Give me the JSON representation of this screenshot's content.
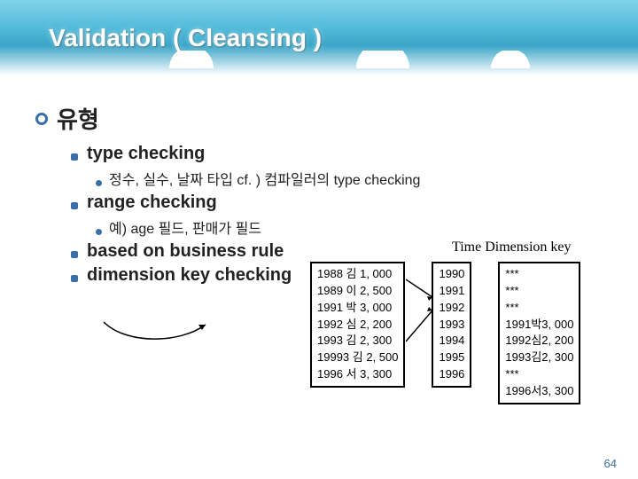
{
  "title": "Validation ( Cleansing )",
  "main_bullet": "유형",
  "items": [
    {
      "label": "type checking",
      "sub": "정수, 실수, 날짜 타입   cf. ) 컴파일러의 type checking"
    },
    {
      "label": "range checking",
      "sub": "예) age 필드, 판매가 필드"
    },
    {
      "label": "based on business rule",
      "sub": null
    },
    {
      "label": "dimension key checking",
      "sub": null
    }
  ],
  "dim_label": "Time Dimension key",
  "table_left": {
    "rows": [
      "1988 김 1, 000",
      "1989 이 2, 500",
      "1991 박 3, 000",
      "1992 심 2, 200",
      "1993 김 2, 300",
      "19993 김 2, 500",
      "1996 서 3, 300"
    ]
  },
  "table_mid": {
    "rows": [
      "1990",
      "1991",
      "1992",
      "1993",
      "1994",
      "1995",
      "1996"
    ]
  },
  "table_right": {
    "rows": [
      [
        "*",
        "*",
        "*"
      ],
      [
        "*",
        "*",
        "*"
      ],
      [
        "*",
        "*",
        "*"
      ],
      [
        "1991",
        "박",
        "3, 000"
      ],
      [
        "1992",
        "심",
        "2, 200"
      ],
      [
        "1993",
        "김",
        "2, 300"
      ],
      [
        "*",
        "*",
        "*"
      ],
      [
        "1996",
        "서",
        "3, 300"
      ]
    ]
  },
  "page": "64",
  "colors": {
    "accent": "#3a6ea8",
    "title_bg_top": "#7fd4e8"
  }
}
